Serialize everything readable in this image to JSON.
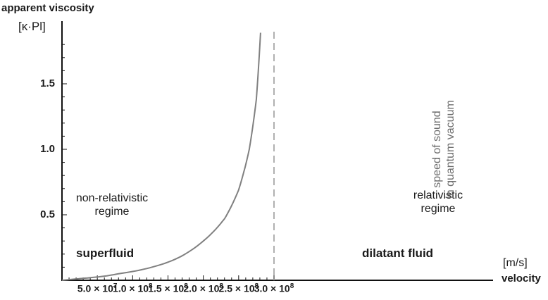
{
  "chart_data": {
    "type": "line",
    "xlabel": "velocity",
    "x_unit": "[m/s]",
    "ylabel": "apparent viscosity",
    "y_unit": "[κ·Pl]",
    "xlim": [
      0,
      300000000
    ],
    "ylim": [
      0,
      1.9
    ],
    "x_ticks": [
      {
        "value": 50000000,
        "mantissa": "5.0",
        "exp": "7"
      },
      {
        "value": 100000000,
        "mantissa": "1.0",
        "exp": "8"
      },
      {
        "value": 150000000,
        "mantissa": "1.5",
        "exp": "8"
      },
      {
        "value": 200000000,
        "mantissa": "2.0",
        "exp": "8"
      },
      {
        "value": 250000000,
        "mantissa": "2.5",
        "exp": "8"
      },
      {
        "value": 300000000,
        "mantissa": "3.0",
        "exp": "8"
      }
    ],
    "y_ticks": [
      {
        "value": 0.5,
        "label": "0.5"
      },
      {
        "value": 1.0,
        "label": "1.0"
      },
      {
        "value": 1.5,
        "label": "1.5"
      }
    ],
    "series": [
      {
        "color": "#808080",
        "x": [
          0,
          40000000,
          80000000,
          120000000,
          160000000,
          200000000,
          230000000,
          250000000,
          265000000,
          275000000,
          281000000
        ],
        "y": [
          0.0,
          0.02,
          0.05,
          0.09,
          0.16,
          0.3,
          0.47,
          0.69,
          1.0,
          1.38,
          1.89
        ]
      }
    ],
    "reference_line": {
      "x": 300000000,
      "style": "dashed",
      "color": "#b0b0b0",
      "label_line1": "speed of sound",
      "label_line2": "in quantum vacuum"
    },
    "annotations": {
      "left_regime_line1": "non-relativistic",
      "left_regime_line2": "regime",
      "left_fluid": "superfluid",
      "right_regime_line1": "relativistic",
      "right_regime_line2": "regime",
      "right_fluid": "dilatant fluid"
    },
    "times_symbol": "×"
  }
}
